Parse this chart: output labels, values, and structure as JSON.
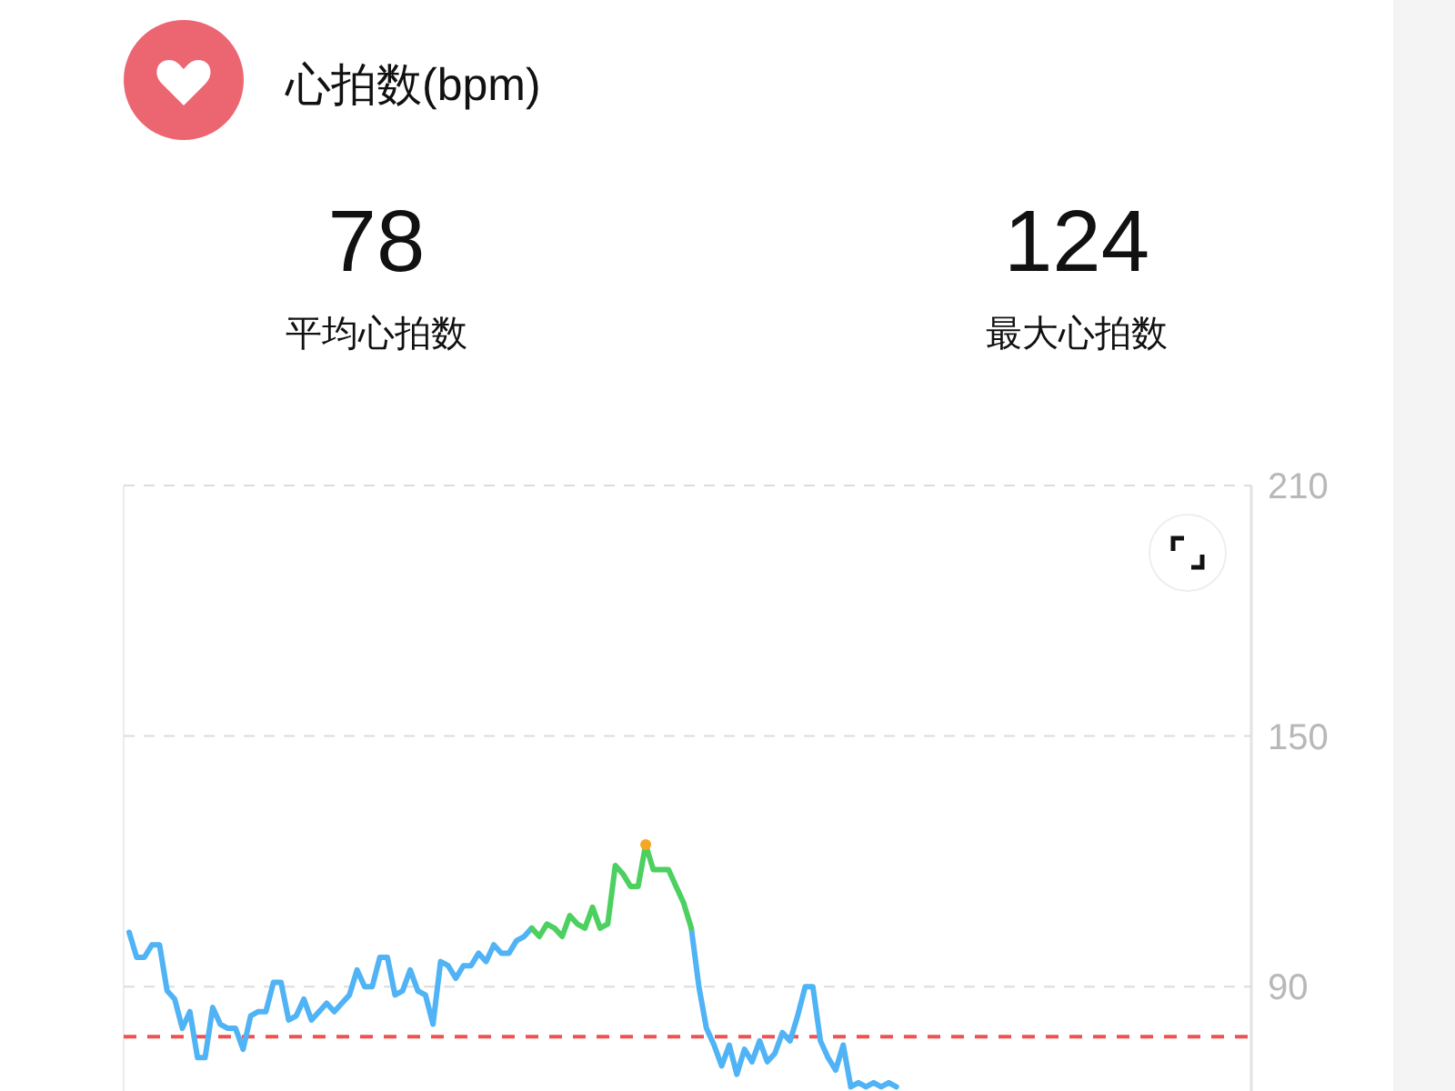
{
  "chart_data": [
    {
      "type": "other",
      "title": "心拍数(bpm)",
      "annotations": [
        "78",
        "平均心拍数",
        "124",
        "最大心拍数"
      ]
    },
    {
      "type": "line",
      "categories": [
        null,
        null,
        null,
        null,
        null,
        null,
        null,
        null,
        null,
        null,
        null,
        null,
        null,
        null,
        null,
        null,
        null,
        null,
        null,
        null,
        null,
        null,
        null,
        null,
        null,
        null,
        null,
        null,
        null,
        null,
        null,
        null,
        null,
        null,
        null,
        null,
        null,
        null,
        null,
        null,
        null,
        null,
        null,
        null,
        null,
        null,
        null,
        null,
        null,
        null,
        null,
        null,
        null,
        null,
        null,
        null,
        null,
        null,
        null,
        null,
        null,
        null,
        null,
        null,
        null,
        null,
        null,
        null,
        null,
        null,
        null,
        null,
        null,
        null,
        null,
        null,
        null,
        null,
        null,
        null,
        null,
        null,
        null,
        null,
        null,
        null,
        null,
        null,
        null,
        null,
        null,
        null,
        null,
        null,
        null,
        null,
        null,
        null,
        null,
        null,
        null,
        null,
        null,
        null,
        null,
        null,
        null,
        null,
        null,
        null,
        null,
        null,
        null,
        null,
        null,
        null,
        null,
        null,
        null,
        null,
        null,
        null,
        null,
        null,
        null,
        null,
        null,
        null,
        null,
        null,
        null,
        null,
        null,
        null,
        null,
        null,
        null,
        null,
        null,
        null,
        null,
        null,
        null,
        null,
        null,
        null,
        null,
        null
      ],
      "series": [
        {
          "color": "#4fb3f5",
          "values": [
            103,
            97,
            97,
            100,
            100,
            89,
            87,
            80,
            84,
            73,
            73,
            85,
            81,
            80,
            80,
            75,
            83,
            84,
            84,
            91,
            91,
            82,
            83,
            87,
            82,
            84,
            86,
            84,
            86,
            88,
            94,
            90,
            90,
            97,
            97,
            88,
            89,
            94,
            89,
            88,
            81,
            96,
            95,
            92,
            95,
            95,
            98,
            96,
            100,
            98,
            98,
            101,
            102,
            104,
            null,
            null,
            null,
            null,
            null,
            null,
            null,
            null,
            null,
            null,
            null,
            null,
            null,
            null,
            null,
            null,
            null,
            null,
            null,
            null,
            104,
            90,
            80,
            76,
            71,
            76,
            69,
            75,
            72,
            77,
            72,
            74,
            79,
            77,
            83,
            90,
            90,
            77,
            73,
            70,
            76,
            66,
            67,
            66,
            67,
            66,
            67,
            66,
            null,
            null,
            null,
            null,
            null,
            null,
            null,
            null,
            null,
            null,
            null,
            null,
            null,
            null,
            null,
            null,
            null,
            null,
            null,
            null,
            null,
            null,
            null,
            null,
            null,
            null,
            null,
            null,
            null,
            null,
            null,
            null,
            null,
            null,
            null,
            null,
            null,
            null,
            null,
            null,
            null,
            null,
            null,
            null,
            null,
            null
          ]
        },
        {
          "color": "#4cd060",
          "values": [
            null,
            null,
            null,
            null,
            null,
            null,
            null,
            null,
            null,
            null,
            null,
            null,
            null,
            null,
            null,
            null,
            null,
            null,
            null,
            null,
            null,
            null,
            null,
            null,
            null,
            null,
            null,
            null,
            null,
            null,
            null,
            null,
            null,
            null,
            null,
            null,
            null,
            null,
            null,
            null,
            null,
            null,
            null,
            null,
            null,
            null,
            null,
            null,
            null,
            null,
            null,
            null,
            null,
            104,
            102,
            105,
            104,
            102,
            107,
            105,
            104,
            109,
            104,
            105,
            119,
            117,
            114,
            114,
            124,
            118,
            118,
            118,
            114,
            110,
            104,
            null,
            null,
            null,
            null,
            null,
            null,
            null,
            null,
            null,
            null,
            null,
            null,
            null,
            null,
            null,
            null,
            null,
            null,
            null,
            null,
            null,
            null,
            null,
            null,
            null,
            null,
            null,
            null,
            null,
            null,
            null,
            null,
            null,
            null,
            null,
            null,
            null,
            null,
            null,
            null,
            null,
            null,
            null,
            null,
            null,
            null,
            null,
            null,
            null,
            null,
            null,
            null,
            null,
            null,
            null,
            null,
            null,
            null,
            null,
            null,
            null,
            null,
            null,
            null,
            null,
            null,
            null,
            null,
            null,
            null,
            null,
            null,
            null
          ]
        },
        {
          "type": "scatter",
          "marker": "circle",
          "color": "#f5a623",
          "values": [
            null,
            null,
            null,
            null,
            null,
            null,
            null,
            null,
            null,
            null,
            null,
            null,
            null,
            null,
            null,
            null,
            null,
            null,
            null,
            null,
            null,
            null,
            null,
            null,
            null,
            null,
            null,
            null,
            null,
            null,
            null,
            null,
            null,
            null,
            null,
            null,
            null,
            null,
            null,
            null,
            null,
            null,
            null,
            null,
            null,
            null,
            null,
            null,
            null,
            null,
            null,
            null,
            null,
            null,
            null,
            null,
            null,
            null,
            null,
            null,
            null,
            null,
            null,
            null,
            null,
            null,
            null,
            null,
            124,
            null,
            null,
            null,
            null,
            null,
            null,
            null,
            null,
            null,
            null,
            null,
            null,
            null,
            null,
            null,
            null,
            null,
            null,
            null,
            null,
            null,
            null,
            null,
            null,
            null,
            null,
            null,
            null,
            null,
            null,
            null,
            null,
            null,
            null,
            null,
            null,
            null,
            null,
            null,
            null,
            null,
            null,
            null,
            null,
            null,
            null,
            null,
            null,
            null,
            null,
            null,
            null,
            null,
            null,
            null,
            null,
            null,
            null,
            null,
            null,
            null,
            null,
            null,
            null,
            null,
            null,
            null,
            null,
            null,
            null,
            null,
            null,
            null,
            null,
            null,
            null,
            null,
            null,
            null
          ]
        }
      ],
      "ylim": [
        65,
        210
      ],
      "yticks": [
        90,
        150,
        210
      ],
      "grid": "y",
      "marker": "none",
      "line_style": "solid",
      "ref_lines": [
        {
          "axis": "y",
          "value": 78,
          "color": "#f05050",
          "line_style": "dashed"
        }
      ]
    }
  ]
}
